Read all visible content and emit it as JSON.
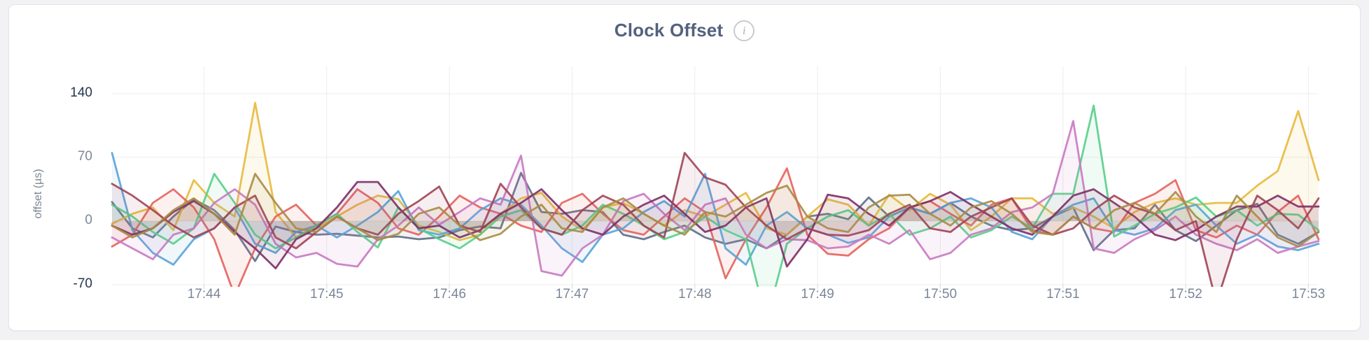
{
  "header": {
    "title": "Clock Offset",
    "info_glyph": "i"
  },
  "colors": {
    "page_background": "#f2f2f4",
    "card_background": "#ffffff",
    "card_border": "#e5e5e7",
    "title_text": "#54627e",
    "grid_line": "#ececec",
    "tick_stub": "#d8d8d8",
    "x_tick_text": "#7b8698",
    "y_tick_text_dark": "#27354f",
    "y_tick_text_gray": "#7d8795"
  },
  "chart_data": {
    "type": "line",
    "title": "Clock Offset",
    "xlabel": "",
    "ylabel": "offset (µs)",
    "grid": true,
    "legend": "none",
    "ylim": [
      -70,
      140
    ],
    "y_ticks": [
      {
        "value": 140,
        "label": "140",
        "color": "#27354f"
      },
      {
        "value": 70,
        "label": "70",
        "color": "#7d8795"
      },
      {
        "value": 0,
        "label": "0",
        "color": "#7d8795"
      },
      {
        "value": -70,
        "label": "-70",
        "color": "#27354f"
      }
    ],
    "x_ticks": [
      "17:44",
      "17:45",
      "17:46",
      "17:47",
      "17:48",
      "17:49",
      "17:50",
      "17:51",
      "17:52",
      "17:53"
    ],
    "x_start": "17:43:15",
    "x_interval_seconds": 10,
    "fill_opacity": 0.09,
    "series": [
      {
        "name": "series-slate",
        "color": "#5F6C87",
        "values": [
          21,
          -8,
          -18,
          5,
          24,
          12,
          -10,
          -44,
          -6,
          -12,
          -15,
          -14,
          -16,
          -18,
          -17,
          -20,
          -18,
          -10,
          -6,
          -8,
          53,
          10,
          8,
          12,
          10,
          -15,
          -20,
          -12,
          -5,
          -18,
          -25,
          -20,
          -30,
          -15,
          5,
          8,
          2,
          26,
          5,
          15,
          8,
          20,
          5,
          -5,
          -10,
          -8,
          5,
          15,
          -32,
          -10,
          -8,
          18,
          -10,
          -22,
          -5,
          12,
          19,
          -15,
          -25,
          -12
        ]
      },
      {
        "name": "series-yellow",
        "color": "#E8B93C",
        "values": [
          -3,
          8,
          15,
          -10,
          45,
          20,
          5,
          130,
          10,
          -18,
          -8,
          5,
          18,
          28,
          24,
          -5,
          -12,
          -21,
          -15,
          8,
          25,
          31,
          5,
          -10,
          15,
          20,
          8,
          -5,
          12,
          5,
          18,
          31,
          -8,
          -15,
          5,
          24,
          18,
          -5,
          29,
          12,
          30,
          18,
          -10,
          5,
          25,
          25,
          8,
          15,
          5,
          -8,
          10,
          20,
          25,
          18,
          20,
          20,
          39,
          55,
          121,
          45
        ]
      },
      {
        "name": "series-salmon",
        "color": "#E4625C",
        "values": [
          -28,
          -15,
          20,
          35,
          15,
          -20,
          -82,
          -30,
          5,
          18,
          -5,
          8,
          35,
          20,
          -8,
          -15,
          5,
          28,
          15,
          8,
          -5,
          -12,
          20,
          30,
          8,
          -10,
          -15,
          5,
          25,
          10,
          -63,
          -20,
          15,
          58,
          -15,
          -36,
          -38,
          -20,
          -8,
          15,
          22,
          8,
          -5,
          18,
          25,
          -10,
          -15,
          5,
          -8,
          -12,
          20,
          30,
          45,
          -10,
          -18,
          -5,
          -15,
          10,
          28,
          -20
        ]
      },
      {
        "name": "series-blue",
        "color": "#58A2D8",
        "values": [
          75,
          -10,
          -35,
          -48,
          -20,
          -8,
          15,
          -25,
          -35,
          -12,
          -5,
          -18,
          -5,
          10,
          33,
          -10,
          -15,
          -8,
          12,
          25,
          18,
          -5,
          -30,
          -45,
          -15,
          -8,
          10,
          22,
          5,
          52,
          -30,
          -48,
          -5,
          10,
          -8,
          -15,
          -24,
          -18,
          5,
          15,
          8,
          20,
          25,
          15,
          -12,
          -20,
          5,
          18,
          25,
          -10,
          -15,
          -8,
          12,
          18,
          -5,
          -25,
          -15,
          -28,
          -32,
          -25
        ]
      },
      {
        "name": "series-green",
        "color": "#57CE8B",
        "values": [
          18,
          5,
          -12,
          -25,
          -8,
          52,
          20,
          -15,
          -30,
          -18,
          -5,
          8,
          -12,
          -29,
          15,
          -8,
          -20,
          -30,
          -15,
          5,
          12,
          -8,
          -15,
          -5,
          18,
          8,
          -5,
          -20,
          -12,
          5,
          -10,
          -20,
          -110,
          -25,
          -8,
          5,
          12,
          -5,
          8,
          -15,
          -8,
          5,
          -18,
          -10,
          5,
          -8,
          30,
          30,
          127,
          -17,
          -5,
          8,
          15,
          26,
          5,
          12,
          -5,
          8,
          7,
          -10
        ]
      },
      {
        "name": "series-orchid",
        "color": "#C879C1",
        "values": [
          -18,
          -30,
          -42,
          -15,
          -8,
          20,
          35,
          18,
          -25,
          -40,
          -35,
          -47,
          -50,
          -20,
          -5,
          15,
          -4,
          10,
          25,
          18,
          72,
          -55,
          -60,
          -30,
          -15,
          22,
          30,
          8,
          -10,
          18,
          25,
          -15,
          -30,
          -20,
          -21,
          -30,
          -28,
          -15,
          -25,
          -10,
          -42,
          -35,
          -15,
          -8,
          10,
          15,
          30,
          110,
          -30,
          -35,
          -20,
          -10,
          5,
          -15,
          -25,
          -32,
          -20,
          -35,
          -28,
          -22
        ]
      },
      {
        "name": "series-plum",
        "color": "#7D2E66",
        "values": [
          -5,
          -15,
          -8,
          10,
          22,
          8,
          -12,
          -30,
          -52,
          -20,
          -8,
          15,
          43,
          43,
          15,
          -8,
          -5,
          -18,
          -10,
          8,
          20,
          35,
          12,
          -8,
          -15,
          5,
          18,
          28,
          8,
          -12,
          -5,
          15,
          25,
          -50,
          -20,
          29,
          25,
          8,
          -5,
          15,
          22,
          32,
          18,
          5,
          -8,
          -15,
          5,
          28,
          35,
          20,
          5,
          -15,
          -21,
          -10,
          5,
          16,
          16,
          28,
          16,
          16
        ]
      },
      {
        "name": "series-maroon",
        "color": "#A04355",
        "values": [
          41,
          28,
          12,
          -5,
          -18,
          -8,
          15,
          28,
          -18,
          -30,
          -12,
          5,
          -8,
          -15,
          8,
          22,
          38,
          -5,
          -12,
          41,
          15,
          -8,
          -15,
          12,
          28,
          18,
          -5,
          -18,
          75,
          48,
          40,
          15,
          -5,
          -20,
          -8,
          -15,
          -16,
          -10,
          8,
          18,
          -8,
          -12,
          5,
          15,
          25,
          -5,
          -15,
          -8,
          12,
          28,
          15,
          8,
          -10,
          0,
          -90,
          -20,
          28,
          12,
          -8,
          25
        ]
      },
      {
        "name": "series-olive",
        "color": "#A78B45",
        "values": [
          -5,
          -18,
          -8,
          12,
          25,
          8,
          -15,
          52,
          20,
          -8,
          -12,
          5,
          -8,
          -21,
          -14,
          8,
          15,
          -5,
          -21,
          -14,
          5,
          18,
          -8,
          -12,
          15,
          25,
          8,
          -5,
          -15,
          10,
          5,
          18,
          31,
          39,
          5,
          -8,
          -12,
          15,
          28,
          29,
          8,
          -5,
          15,
          22,
          8,
          -12,
          -15,
          5,
          -8,
          12,
          20,
          8,
          32,
          5,
          -12,
          28,
          5,
          -18,
          -28,
          -12
        ]
      }
    ]
  }
}
